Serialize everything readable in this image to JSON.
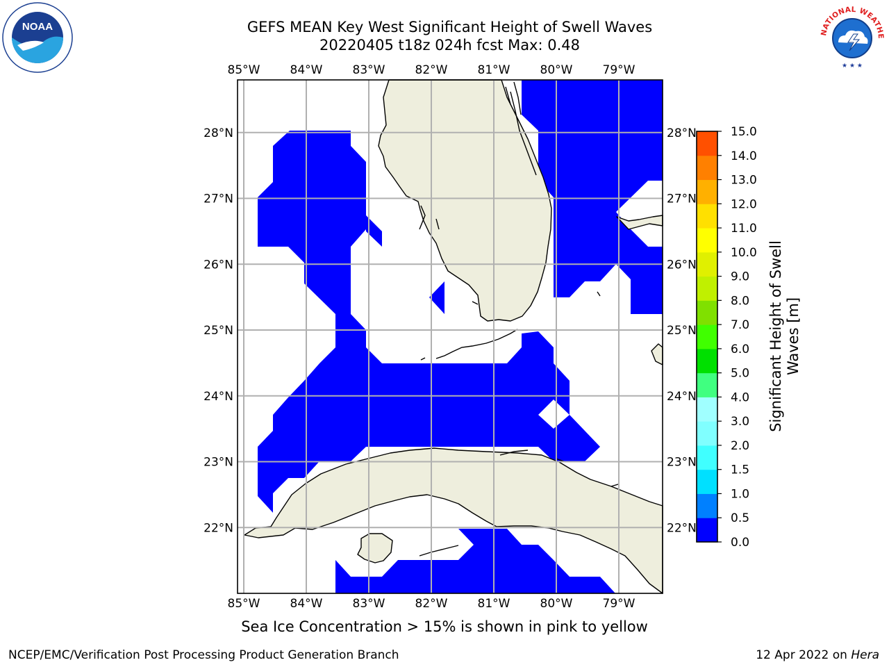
{
  "header": {
    "title_line1": "GEFS MEAN Key West Significant Height of Swell Waves",
    "title_line2": "20220405 t18z 024h fcst   Max: 0.48",
    "max_value": 0.48
  },
  "logos": {
    "left": {
      "icon": "noaa-logo",
      "text": "NOAA"
    },
    "right": {
      "icon": "nws-logo",
      "text": "NATIONAL WEATHER SERVICE"
    }
  },
  "map": {
    "region": "Key West",
    "lon_range": [
      -85.1,
      -78.3
    ],
    "lat_range": [
      21.0,
      28.8
    ],
    "lon_ticks": [
      "85°W",
      "84°W",
      "83°W",
      "82°W",
      "81°W",
      "80°W",
      "79°W"
    ],
    "lat_ticks": [
      "22°N",
      "23°N",
      "24°N",
      "25°N",
      "26°N",
      "27°N",
      "28°N"
    ],
    "grid": true,
    "land_color": "#eeeedd",
    "swell_field_color": "#0000ff"
  },
  "colorbar": {
    "label_line1": "Significant Height of Swell",
    "label_line2": "Waves [m]",
    "ticks": [
      "0.0",
      "0.5",
      "1.0",
      "1.5",
      "2.0",
      "3.0",
      "4.0",
      "5.0",
      "6.0",
      "7.0",
      "8.0",
      "9.0",
      "10.0",
      "11.0",
      "12.0",
      "13.0",
      "14.0",
      "15.0"
    ],
    "colors": [
      "#0000ff",
      "#0080ff",
      "#00e0ff",
      "#40ffff",
      "#80ffff",
      "#a0ffff",
      "#40ff80",
      "#00e000",
      "#40ff00",
      "#80e000",
      "#c0f000",
      "#e0f000",
      "#ffff00",
      "#ffe000",
      "#ffb000",
      "#ff8000",
      "#ff5000",
      "#ff2000",
      "#ff0000"
    ]
  },
  "footer": {
    "sea_ice_note": "Sea Ice Concentration > 15% is shown in pink to yellow",
    "credit": "NCEP/EMC/Verification Post Processing Product Generation Branch",
    "date": "12 Apr 2022 on ",
    "host": "Hera"
  }
}
